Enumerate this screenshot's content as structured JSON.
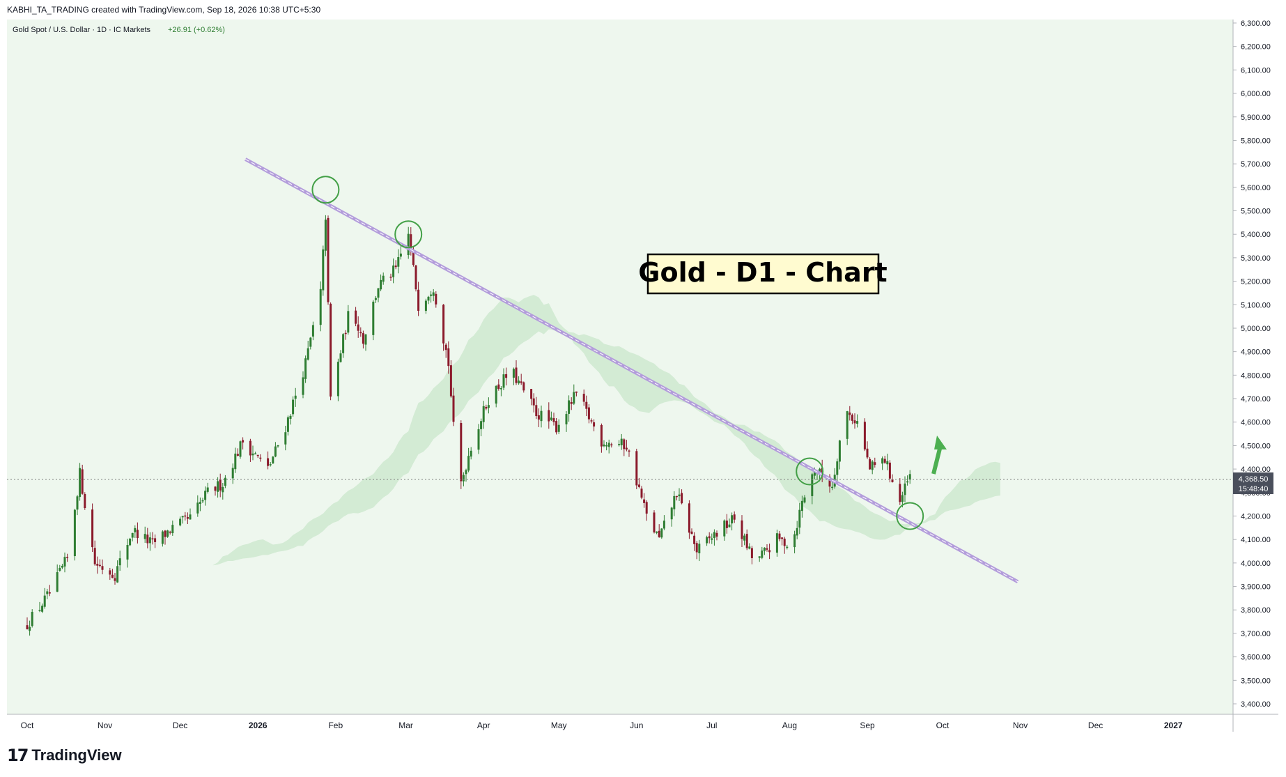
{
  "header": {
    "credit": "KABHI_TA_TRADING created with TradingView.com, Sep 18, 2026 10:38 UTC+5:30"
  },
  "legend": {
    "symbol": "Gold Spot / U.S. Dollar · 1D · IC Markets",
    "change": "+26.91 (+0.62%)"
  },
  "annotation": {
    "label": "Gold - D1 - Chart"
  },
  "price_tag": {
    "price": "4,368.50",
    "countdown": "15:48:40"
  },
  "footer": {
    "brand": "TradingView",
    "mark": "17"
  },
  "colors": {
    "up": "#2e7d32",
    "down": "#8b1a2b",
    "plot_bg": "#eef7ee",
    "trendline": "#b39ddb",
    "cloud_bull": "#c8e6c9",
    "cloud_bear": "#f2d9d0",
    "circle": "#43a047",
    "arrow": "#4caf50"
  },
  "chart_data": {
    "type": "candlestick",
    "title": "Gold - D1 - Chart",
    "ylim": [
      3350,
      6330
    ],
    "y_ticks": [
      "6,300.00",
      "6,200.00",
      "6,100.00",
      "6,000.00",
      "5,900.00",
      "5,800.00",
      "5,700.00",
      "5,600.00",
      "5,500.00",
      "5,400.00",
      "5,300.00",
      "5,200.00",
      "5,100.00",
      "5,000.00",
      "4,900.00",
      "4,800.00",
      "4,700.00",
      "4,600.00",
      "4,500.00",
      "4,400.00",
      "4,300.00",
      "4,200.00",
      "4,100.00",
      "4,000.00",
      "3,900.00",
      "3,800.00",
      "3,700.00",
      "3,600.00",
      "3,500.00",
      "3,400.00"
    ],
    "x_ticks": [
      "Oct",
      "Nov",
      "Dec",
      "2026",
      "Feb",
      "Mar",
      "Apr",
      "May",
      "Jun",
      "Jul",
      "Aug",
      "Sep",
      "Oct",
      "Nov",
      "Dec",
      "2027"
    ],
    "current_price": 4368.5,
    "trendline": {
      "start": [
        "2025-12-27",
        5720
      ],
      "end": [
        "2026-10-31",
        3920
      ]
    },
    "close_path": [
      [
        "2025-10-01",
        3740
      ],
      [
        "2025-10-10",
        3870
      ],
      [
        "2025-10-17",
        4020
      ],
      [
        "2025-10-22",
        4380
      ],
      [
        "2025-10-28",
        4000
      ],
      [
        "2025-11-05",
        3950
      ],
      [
        "2025-11-12",
        4140
      ],
      [
        "2025-11-20",
        4080
      ],
      [
        "2025-11-28",
        4150
      ],
      [
        "2025-12-05",
        4190
      ],
      [
        "2025-12-12",
        4300
      ],
      [
        "2025-12-18",
        4340
      ],
      [
        "2025-12-26",
        4520
      ],
      [
        "2026-01-05",
        4400
      ],
      [
        "2026-01-12",
        4580
      ],
      [
        "2026-01-20",
        4850
      ],
      [
        "2026-01-26",
        5150
      ],
      [
        "2026-01-28",
        5480
      ],
      [
        "2026-01-30",
        4700
      ],
      [
        "2026-02-03",
        4900
      ],
      [
        "2026-02-07",
        5100
      ],
      [
        "2026-02-12",
        4950
      ],
      [
        "2026-02-18",
        5180
      ],
      [
        "2026-02-25",
        5250
      ],
      [
        "2026-03-02",
        5400
      ],
      [
        "2026-03-06",
        5100
      ],
      [
        "2026-03-12",
        5180
      ],
      [
        "2026-03-18",
        4850
      ],
      [
        "2026-03-22",
        4300
      ],
      [
        "2026-03-27",
        4500
      ],
      [
        "2026-04-03",
        4700
      ],
      [
        "2026-04-12",
        4820
      ],
      [
        "2026-04-22",
        4640
      ],
      [
        "2026-04-30",
        4580
      ],
      [
        "2026-05-08",
        4720
      ],
      [
        "2026-05-18",
        4520
      ],
      [
        "2026-05-28",
        4500
      ],
      [
        "2026-06-05",
        4200
      ],
      [
        "2026-06-10",
        4100
      ],
      [
        "2026-06-17",
        4300
      ],
      [
        "2026-06-25",
        4050
      ],
      [
        "2026-07-02",
        4120
      ],
      [
        "2026-07-10",
        4190
      ],
      [
        "2026-07-18",
        4000
      ],
      [
        "2026-07-27",
        4100
      ],
      [
        "2026-08-02",
        4080
      ],
      [
        "2026-08-06",
        4260
      ],
      [
        "2026-08-11",
        4400
      ],
      [
        "2026-08-18",
        4330
      ],
      [
        "2026-08-23",
        4650
      ],
      [
        "2026-08-28",
        4600
      ],
      [
        "2026-09-02",
        4400
      ],
      [
        "2026-09-08",
        4440
      ],
      [
        "2026-09-14",
        4260
      ],
      [
        "2026-09-18",
        4368
      ]
    ],
    "highlight_circles": [
      [
        "2026-01-28",
        5590
      ],
      [
        "2026-03-02",
        5400
      ],
      [
        "2026-08-09",
        4390
      ],
      [
        "2026-09-18",
        4200
      ]
    ]
  }
}
